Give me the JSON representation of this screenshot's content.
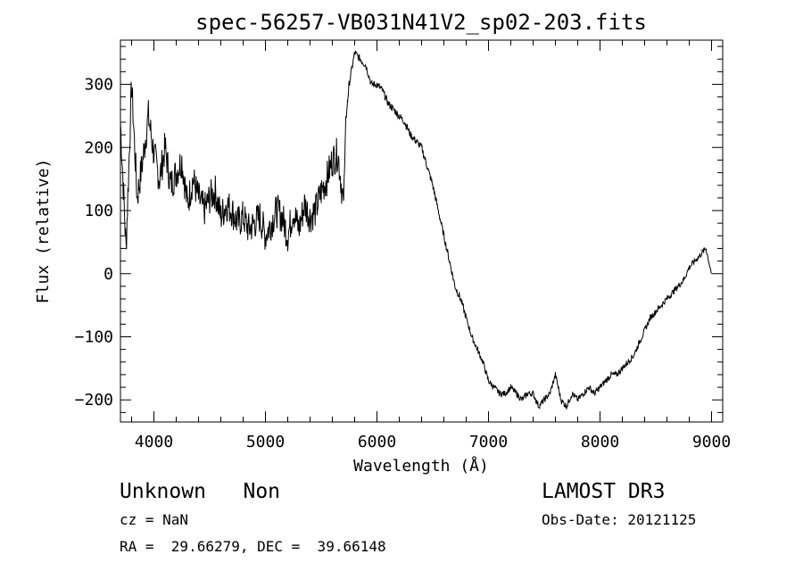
{
  "chart_data": {
    "type": "line",
    "title": "spec-56257-VB031N41V2_sp02-203.fits",
    "xlabel": "Wavelength (Å)",
    "ylabel": "Flux (relative)",
    "xlim": [
      3700,
      9100
    ],
    "ylim": [
      -235,
      370
    ],
    "x_ticks": [
      4000,
      5000,
      6000,
      7000,
      8000,
      9000
    ],
    "y_ticks": [
      -200,
      -100,
      0,
      100,
      200,
      300
    ],
    "grid": false,
    "legend": "none",
    "series": [
      {
        "x": [
          3700,
          3750,
          3800,
          3850,
          3900,
          3950,
          4000,
          4050,
          4100,
          4150,
          4200,
          4250,
          4300,
          4350,
          4400,
          4450,
          4500,
          4550,
          4600,
          4650,
          4700,
          4750,
          4800,
          4850,
          4900,
          4950,
          5000,
          5050,
          5100,
          5150,
          5200,
          5250,
          5300,
          5350,
          5400,
          5450,
          5500,
          5550,
          5600,
          5650,
          5700,
          5720,
          5750,
          5800,
          5850,
          5900,
          5950,
          6000,
          6050,
          6100,
          6150,
          6200,
          6250,
          6300,
          6350,
          6400,
          6450,
          6500,
          6550,
          6600,
          6650,
          6700,
          6750,
          6800,
          6850,
          6900,
          6950,
          7000,
          7050,
          7100,
          7150,
          7200,
          7250,
          7300,
          7350,
          7400,
          7450,
          7500,
          7550,
          7600,
          7650,
          7700,
          7750,
          7800,
          7850,
          7900,
          7950,
          8000,
          8050,
          8100,
          8150,
          8200,
          8250,
          8300,
          8350,
          8400,
          8450,
          8500,
          8550,
          8600,
          8650,
          8700,
          8750,
          8800,
          8850,
          8900,
          8950,
          9000
        ],
        "y": [
          240,
          40,
          300,
          120,
          180,
          250,
          190,
          150,
          200,
          140,
          160,
          180,
          110,
          150,
          120,
          100,
          120,
          130,
          90,
          110,
          100,
          80,
          90,
          70,
          80,
          90,
          60,
          80,
          100,
          90,
          60,
          100,
          70,
          110,
          90,
          100,
          130,
          150,
          180,
          190,
          110,
          240,
          300,
          350,
          340,
          330,
          300,
          300,
          290,
          270,
          260,
          250,
          240,
          220,
          210,
          200,
          170,
          140,
          100,
          60,
          20,
          -20,
          -40,
          -70,
          -100,
          -120,
          -140,
          -170,
          -180,
          -190,
          -190,
          -180,
          -190,
          -200,
          -190,
          -190,
          -210,
          -200,
          -190,
          -160,
          -200,
          -210,
          -190,
          -200,
          -190,
          -180,
          -190,
          -180,
          -170,
          -160,
          -160,
          -150,
          -140,
          -130,
          -110,
          -90,
          -70,
          -60,
          -50,
          -40,
          -30,
          -20,
          -10,
          10,
          20,
          30,
          40,
          0
        ],
        "y_displayed_range_note": ""
      }
    ]
  },
  "footer": {
    "left_line1": "Unknown   Non",
    "cz": "cz = NaN",
    "radec": "RA =  29.66279, DEC =  39.66148",
    "survey": "LAMOST DR3",
    "obs_date": "Obs-Date: 20121125"
  }
}
